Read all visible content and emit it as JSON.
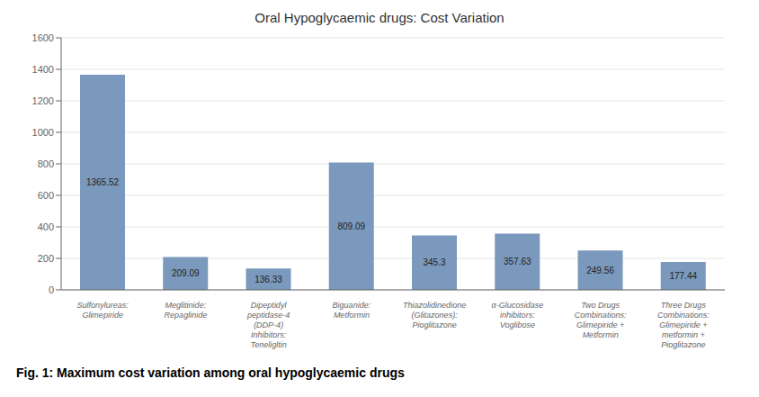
{
  "chart_data": {
    "type": "bar",
    "title": "Oral Hypoglycaemic drugs: Cost Variation",
    "categories": [
      "Sulfonylureas: Glimepiride",
      "Meglitinide: Repaglinide",
      "Dipeptidyl peptidase-4 (DDP-4) Inhibitors: Teneligltin",
      "Biguanide: Metformin",
      "Thiazolidinedione (Glitazones): Pioglitazone",
      "α-Glucosidase inhibitors: Voglibose",
      "Two Drugs Combinations: Glimepiride + Metformin",
      "Three Drugs Combinations: Glimepiride + metformin + Pioglitazone"
    ],
    "values": [
      1365.52,
      209.09,
      136.33,
      809.09,
      345.3,
      357.63,
      249.56,
      177.44
    ],
    "color": "#7a99bc",
    "ylim": [
      0,
      1600
    ],
    "yticks": [
      0,
      200,
      400,
      600,
      800,
      1000,
      1200,
      1400,
      1600
    ],
    "grid": true,
    "data_labels": true,
    "annotations": [
      "Fig. 1: Maximum cost variation among oral hypoglycaemic drugs"
    ]
  }
}
